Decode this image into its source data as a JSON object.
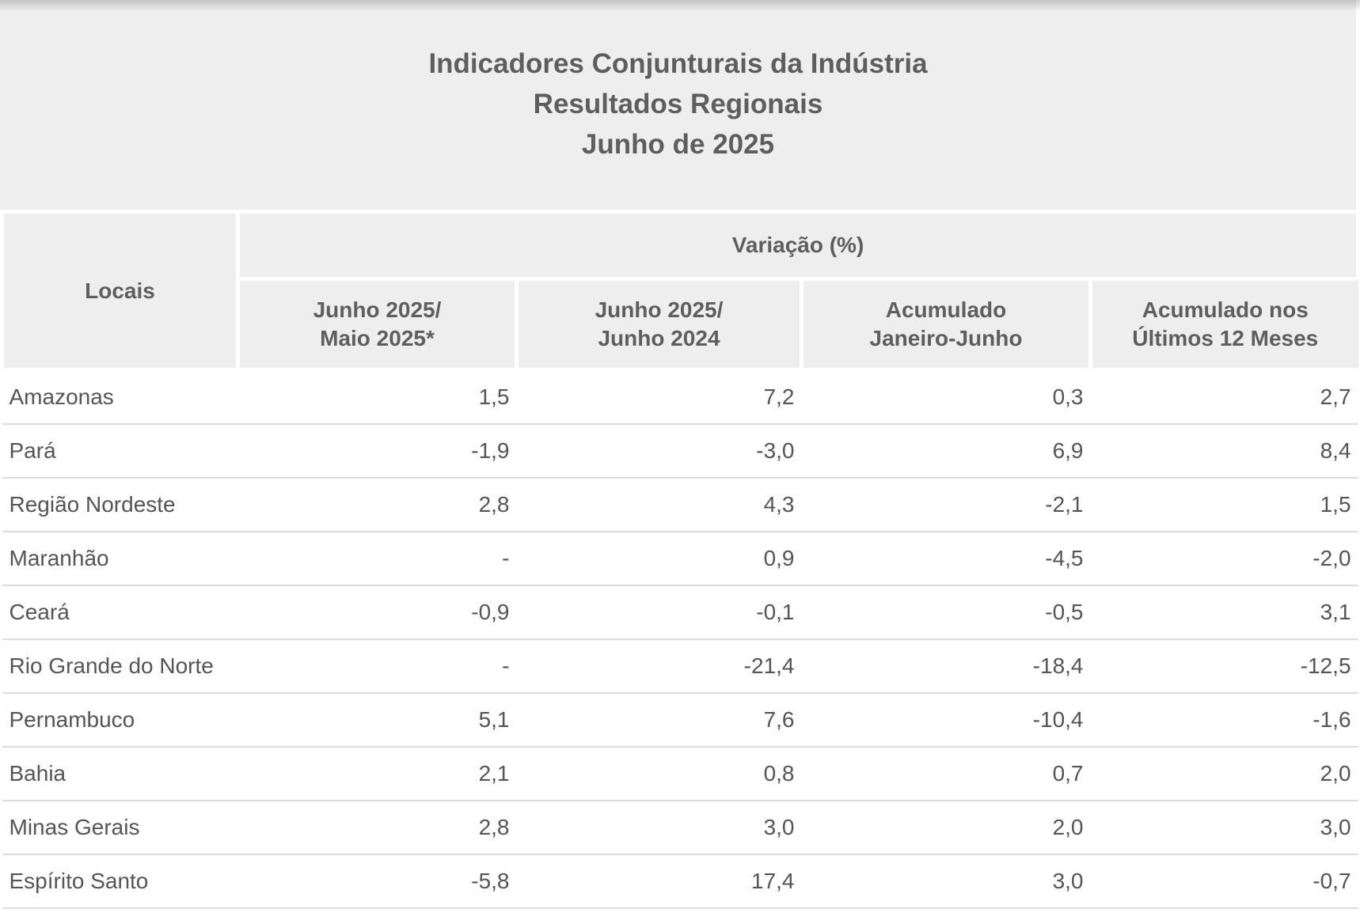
{
  "title": {
    "line1": "Indicadores Conjunturais da Indústria",
    "line2": "Resultados Regionais",
    "line3": "Junho de 2025"
  },
  "header": {
    "locais": "Locais",
    "variacao": "Variação (%)",
    "col1_line1": "Junho 2025/",
    "col1_line2": "Maio 2025*",
    "col2_line1": "Junho 2025/",
    "col2_line2": "Junho 2024",
    "col3_line1": "Acumulado",
    "col3_line2": "Janeiro-Junho",
    "col4_line1": "Acumulado nos",
    "col4_line2": "Últimos 12 Meses"
  },
  "rows": [
    {
      "local": "Amazonas",
      "v1": "1,5",
      "v2": "7,2",
      "v3": "0,3",
      "v4": "2,7"
    },
    {
      "local": "Pará",
      "v1": "-1,9",
      "v2": "-3,0",
      "v3": "6,9",
      "v4": "8,4"
    },
    {
      "local": "Região Nordeste",
      "v1": "2,8",
      "v2": "4,3",
      "v3": "-2,1",
      "v4": "1,5"
    },
    {
      "local": "Maranhão",
      "v1": "-",
      "v2": "0,9",
      "v3": "-4,5",
      "v4": "-2,0"
    },
    {
      "local": "Ceará",
      "v1": "-0,9",
      "v2": "-0,1",
      "v3": "-0,5",
      "v4": "3,1"
    },
    {
      "local": "Rio Grande do Norte",
      "v1": "-",
      "v2": "-21,4",
      "v3": "-18,4",
      "v4": "-12,5"
    },
    {
      "local": "Pernambuco",
      "v1": "5,1",
      "v2": "7,6",
      "v3": "-10,4",
      "v4": "-1,6"
    },
    {
      "local": "Bahia",
      "v1": "2,1",
      "v2": "0,8",
      "v3": "0,7",
      "v4": "2,0"
    },
    {
      "local": "Minas Gerais",
      "v1": "2,8",
      "v2": "3,0",
      "v3": "2,0",
      "v4": "3,0"
    },
    {
      "local": "Espírito Santo",
      "v1": "-5,8",
      "v2": "17,4",
      "v3": "3,0",
      "v4": "-0,7"
    }
  ]
}
